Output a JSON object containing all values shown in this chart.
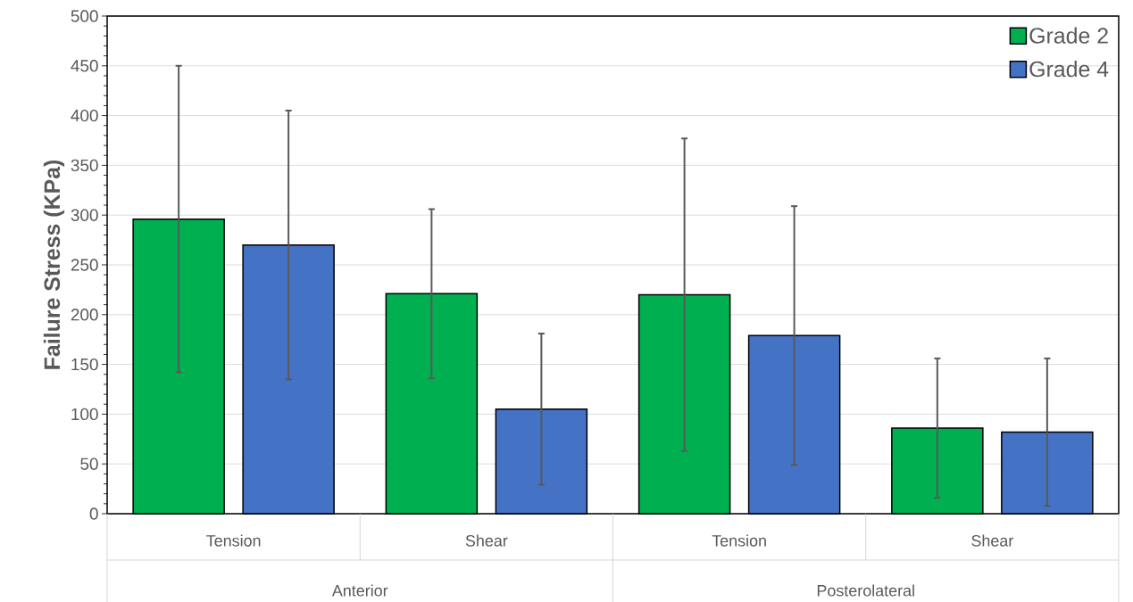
{
  "chart_data": {
    "type": "bar",
    "ylabel": "Failure Stress (KPa)",
    "categories": [
      "Tension",
      "Shear",
      "Tension",
      "Shear"
    ],
    "series": [
      {
        "name": "Grade 2",
        "color": "#00b050",
        "values": [
          296,
          221,
          220,
          86
        ],
        "errors": [
          154,
          85,
          157,
          70
        ]
      },
      {
        "name": "Grade 4",
        "color": "#4472c4",
        "values": [
          270,
          105,
          179,
          82
        ],
        "errors": [
          135,
          76,
          130,
          74
        ]
      }
    ],
    "annotations": [
      "Anterior",
      "Posterolateral"
    ],
    "ylim": [
      0,
      500
    ],
    "yticks": [
      0,
      50,
      100,
      150,
      200,
      250,
      300,
      350,
      400,
      450,
      500
    ],
    "grid": "y",
    "legend": "top right"
  }
}
